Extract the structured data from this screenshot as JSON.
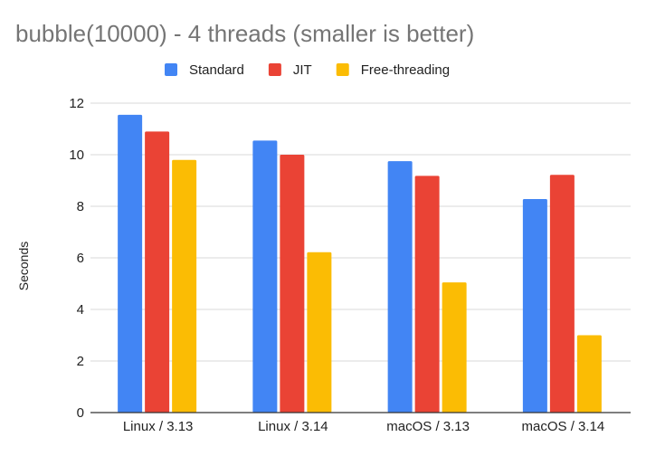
{
  "chart_data": {
    "type": "bar",
    "title": "bubble(10000) - 4 threads (smaller is better)",
    "xlabel": "",
    "ylabel": "Seconds",
    "categories": [
      "Linux / 3.13",
      "Linux / 3.14",
      "macOS / 3.13",
      "macOS / 3.14"
    ],
    "series": [
      {
        "name": "Standard",
        "color": "#4285f4",
        "values": [
          11.55,
          10.55,
          9.75,
          8.28
        ]
      },
      {
        "name": "JIT",
        "color": "#ea4335",
        "values": [
          10.9,
          10.0,
          9.18,
          9.22
        ]
      },
      {
        "name": "Free-threading",
        "color": "#fbbc04",
        "values": [
          9.8,
          6.22,
          5.05,
          3.0
        ]
      }
    ],
    "ylim": [
      0,
      12
    ],
    "yticks": [
      0,
      2,
      4,
      6,
      8,
      10,
      12
    ],
    "grid": true,
    "legend_position": "top"
  }
}
